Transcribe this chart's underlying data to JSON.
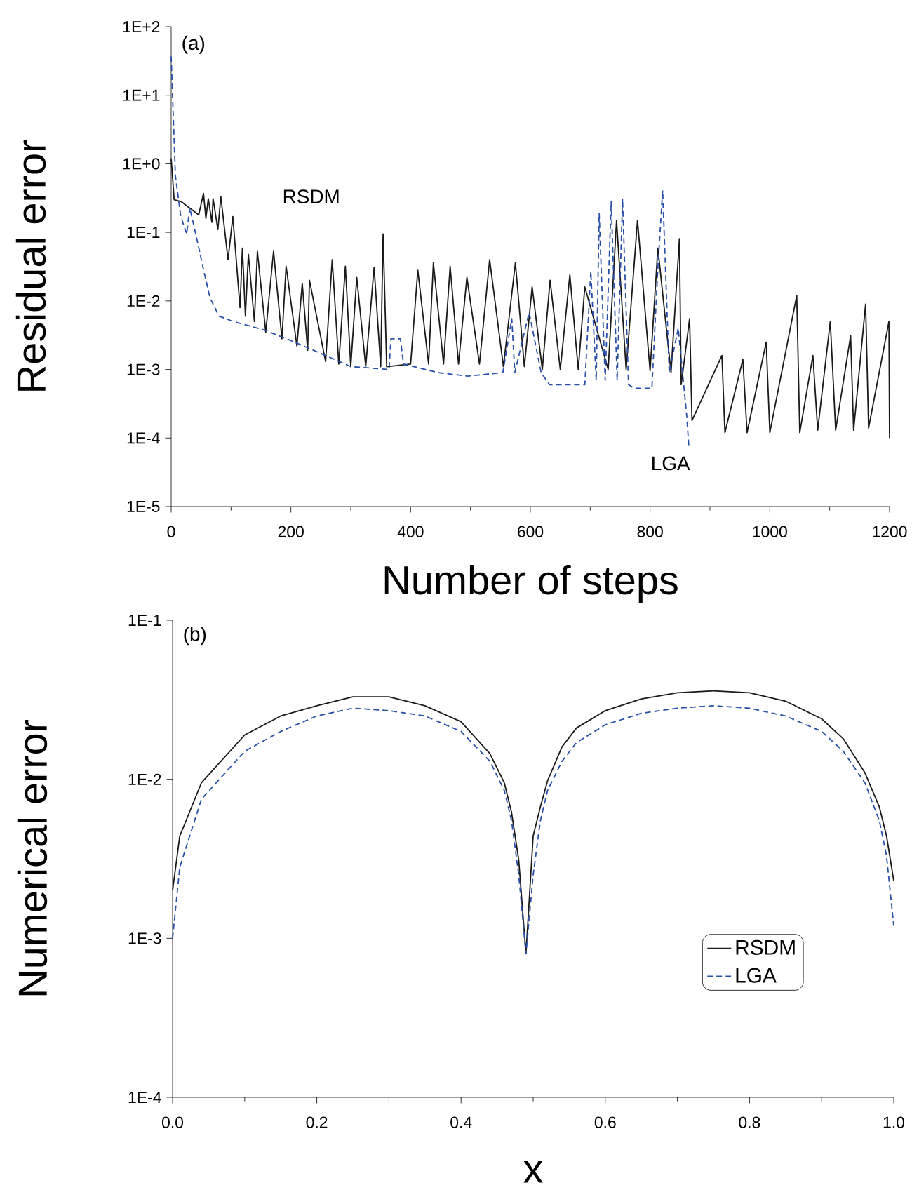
{
  "chart_data": [
    {
      "type": "line",
      "xlabel": "Number of steps",
      "ylabel": "Residual error",
      "log": "y",
      "xlim": [
        0,
        1200
      ],
      "ylim": [
        1e-05,
        100
      ],
      "xticks": [
        0,
        200,
        400,
        600,
        800,
        1000,
        1200
      ],
      "yticks": [
        {
          "value": 100,
          "label": "1E+2"
        },
        {
          "value": 10,
          "label": "1E+1"
        },
        {
          "value": 1,
          "label": "1E+0"
        },
        {
          "value": 0.1,
          "label": "1E-1"
        },
        {
          "value": 0.01,
          "label": "1E-2"
        },
        {
          "value": 0.001,
          "label": "1E-3"
        },
        {
          "value": 0.0001,
          "label": "1E-4"
        },
        {
          "value": 1e-05,
          "label": "1E-5"
        }
      ],
      "annotations": [
        "(a)"
      ],
      "series": [
        {
          "name": "RSDM",
          "color": "#1a1a1a",
          "line_style": "solid",
          "x": [
            0,
            5,
            17,
            46,
            54,
            58,
            62,
            68,
            70,
            78,
            83,
            95,
            103,
            115,
            119,
            124,
            129,
            139,
            144,
            158,
            171,
            185,
            192,
            210,
            219,
            228,
            231,
            258,
            269,
            280,
            291,
            300,
            310,
            325,
            339,
            350,
            354,
            360,
            400,
            412,
            430,
            438,
            455,
            466,
            480,
            494,
            515,
            532,
            555,
            575,
            590,
            603,
            620,
            633,
            650,
            666,
            680,
            691,
            730,
            744,
            760,
            779,
            800,
            813,
            835,
            849,
            852,
            866,
            870,
            920,
            925,
            955,
            962,
            994,
            1000,
            1045,
            1050,
            1072,
            1080,
            1101,
            1110,
            1135,
            1140,
            1160,
            1165,
            1199,
            1200
          ],
          "values": [
            1.2,
            0.3,
            0.28,
            0.18,
            0.37,
            0.16,
            0.31,
            0.14,
            0.31,
            0.11,
            0.33,
            0.04,
            0.17,
            0.008,
            0.059,
            0.006,
            0.048,
            0.005,
            0.053,
            0.0035,
            0.053,
            0.0028,
            0.032,
            0.0022,
            0.018,
            0.0019,
            0.02,
            0.0013,
            0.04,
            0.0012,
            0.032,
            0.0011,
            0.022,
            0.0011,
            0.031,
            0.0011,
            0.095,
            0.0011,
            0.0012,
            0.028,
            0.0012,
            0.036,
            0.0012,
            0.032,
            0.0012,
            0.022,
            0.0012,
            0.04,
            0.0011,
            0.036,
            0.0011,
            0.016,
            0.001,
            0.02,
            0.001,
            0.024,
            0.001,
            0.016,
            0.001,
            0.15,
            0.001,
            0.15,
            0.00095,
            0.059,
            0.0009,
            0.081,
            0.0006,
            0.0055,
            0.00018,
            0.0016,
            0.00012,
            0.0014,
            0.00012,
            0.0025,
            0.00012,
            0.012,
            0.00012,
            0.0016,
            0.00013,
            0.005,
            0.00013,
            0.0031,
            0.00013,
            0.009,
            0.00014,
            0.005,
            0.0001
          ]
        },
        {
          "name": "LGA",
          "color": "#2850a8",
          "line_style": "dashed",
          "x": [
            0,
            7,
            16,
            26,
            31,
            41,
            56,
            65,
            80,
            104,
            154,
            193,
            251,
            300,
            364,
            367,
            383,
            388,
            446,
            495,
            554,
            569,
            574,
            598,
            618,
            632,
            691,
            701,
            710,
            715,
            725,
            735,
            745,
            754,
            764,
            774,
            803,
            813,
            821,
            832,
            847,
            861,
            865
          ],
          "values": [
            37,
            0.68,
            0.17,
            0.095,
            0.23,
            0.095,
            0.024,
            0.011,
            0.006,
            0.005,
            0.0038,
            0.0028,
            0.0017,
            0.0011,
            0.001,
            0.0028,
            0.0028,
            0.0012,
            0.0009,
            0.0008,
            0.0009,
            0.0055,
            0.0009,
            0.0068,
            0.0009,
            0.0006,
            0.0006,
            0.027,
            0.0007,
            0.19,
            0.0007,
            0.28,
            0.0007,
            0.31,
            0.0006,
            0.00053,
            0.00053,
            0.03,
            0.41,
            0.0009,
            0.004,
            0.00022,
            7e-05
          ]
        }
      ]
    },
    {
      "type": "line",
      "xlabel": "x",
      "ylabel": "Numerical error",
      "log": "y",
      "legend": "right",
      "xlim": [
        0,
        1
      ],
      "ylim": [
        0.0001,
        0.1
      ],
      "xticks": [
        {
          "value": 0,
          "label": "0.0"
        },
        {
          "value": 0.2,
          "label": "0.2"
        },
        {
          "value": 0.4,
          "label": "0.4"
        },
        {
          "value": 0.6,
          "label": "0.6"
        },
        {
          "value": 0.8,
          "label": "0.8"
        },
        {
          "value": 1,
          "label": "1.0"
        }
      ],
      "yticks": [
        {
          "value": 0.1,
          "label": "1E-1"
        },
        {
          "value": 0.01,
          "label": "1E-2"
        },
        {
          "value": 0.001,
          "label": "1E-3"
        },
        {
          "value": 0.0001,
          "label": "1E-4"
        }
      ],
      "annotations": [
        "(b)"
      ],
      "x": [
        0,
        0.01,
        0.04,
        0.1,
        0.15,
        0.2,
        0.25,
        0.3,
        0.35,
        0.4,
        0.44,
        0.46,
        0.47,
        0.48,
        0.49,
        0.5,
        0.51,
        0.52,
        0.54,
        0.56,
        0.6,
        0.65,
        0.7,
        0.75,
        0.8,
        0.85,
        0.9,
        0.93,
        0.96,
        0.98,
        0.99,
        1
      ],
      "series": [
        {
          "name": "RSDM",
          "color": "#1a1a1a",
          "line_style": "solid",
          "values": [
            0.002,
            0.0044,
            0.0095,
            0.019,
            0.025,
            0.029,
            0.033,
            0.033,
            0.029,
            0.023,
            0.0145,
            0.0095,
            0.0062,
            0.0031,
            0.0008,
            0.0044,
            0.0067,
            0.0098,
            0.016,
            0.021,
            0.027,
            0.032,
            0.035,
            0.036,
            0.035,
            0.031,
            0.024,
            0.018,
            0.011,
            0.0067,
            0.0044,
            0.0023
          ]
        },
        {
          "name": "LGA",
          "color": "#2850a8",
          "line_style": "dashed",
          "values": [
            0.001,
            0.0028,
            0.0075,
            0.015,
            0.02,
            0.025,
            0.028,
            0.027,
            0.025,
            0.02,
            0.013,
            0.0085,
            0.0055,
            0.0025,
            0.0008,
            0.0025,
            0.0055,
            0.0085,
            0.013,
            0.017,
            0.022,
            0.026,
            0.028,
            0.029,
            0.028,
            0.025,
            0.02,
            0.015,
            0.0095,
            0.0055,
            0.0033,
            0.0012
          ]
        }
      ]
    }
  ]
}
